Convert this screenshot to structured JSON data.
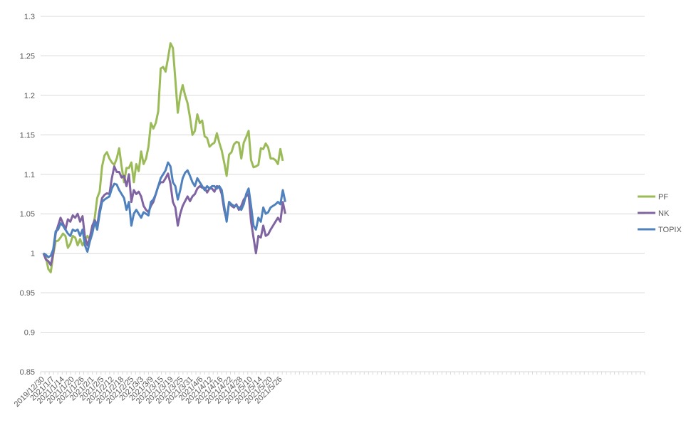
{
  "chart_data": {
    "type": "line",
    "title": "",
    "xlabel": "",
    "ylabel": "",
    "ylim": [
      0.85,
      1.3
    ],
    "yticks": [
      "0.85",
      "0.9",
      "0.95",
      "1",
      "1.05",
      "1.1",
      "1.15",
      "1.2",
      "1.25",
      "1.3"
    ],
    "grid": "horizontal",
    "legend": "right",
    "x_tick_labels": [
      "2019/12/30",
      "2021/1/7",
      "2021/1/14",
      "2021/1/20",
      "2021/1/26",
      "2021/2/1",
      "2021/2/5",
      "2021/2/12",
      "2021/2/18",
      "2021/2/25",
      "2021/3/3",
      "2021/3/9",
      "2021/3/15",
      "2021/3/19",
      "2021/3/25",
      "2021/3/31",
      "2021/4/6",
      "2021/4/12",
      "2021/4/16",
      "2021/4/22",
      "2021/4/28",
      "2021/5/10",
      "2021/5/14",
      "2021/5/20",
      "2021/5/26"
    ],
    "series": [
      {
        "name": "PF",
        "color": "#9bbb59",
        "values": [
          1.0,
          0.995,
          0.98,
          0.976,
          0.998,
          1.015,
          1.016,
          1.02,
          1.025,
          1.022,
          1.007,
          1.012,
          1.022,
          1.02,
          1.01,
          1.018,
          1.01,
          1.016,
          1.022,
          1.018,
          1.03,
          1.045,
          1.07,
          1.078,
          1.11,
          1.124,
          1.128,
          1.12,
          1.115,
          1.112,
          1.12,
          1.133,
          1.11,
          1.09,
          1.108,
          1.108,
          1.115,
          1.09,
          1.113,
          1.104,
          1.129,
          1.113,
          1.12,
          1.135,
          1.165,
          1.158,
          1.165,
          1.18,
          1.234,
          1.236,
          1.23,
          1.247,
          1.266,
          1.26,
          1.22,
          1.178,
          1.2,
          1.213,
          1.2,
          1.19,
          1.172,
          1.15,
          1.155,
          1.176,
          1.165,
          1.168,
          1.148,
          1.146,
          1.135,
          1.138,
          1.14,
          1.152,
          1.14,
          1.13,
          1.115,
          1.098,
          1.125,
          1.128,
          1.138,
          1.141,
          1.14,
          1.12,
          1.14,
          1.147,
          1.155,
          1.118,
          1.109,
          1.11,
          1.112,
          1.133,
          1.132,
          1.139,
          1.134,
          1.12,
          1.12,
          1.118,
          1.113,
          1.132,
          1.117
        ]
      },
      {
        "name": "NK",
        "color": "#8064a2",
        "values": [
          1.0,
          0.992,
          0.99,
          0.985,
          1.0,
          1.025,
          1.035,
          1.045,
          1.038,
          1.03,
          1.043,
          1.04,
          1.048,
          1.045,
          1.05,
          1.04,
          1.047,
          1.02,
          1.01,
          1.02,
          1.035,
          1.042,
          1.035,
          1.055,
          1.07,
          1.074,
          1.076,
          1.075,
          1.095,
          1.11,
          1.103,
          1.103,
          1.096,
          1.098,
          1.085,
          1.1,
          1.065,
          1.08,
          1.075,
          1.078,
          1.072,
          1.06,
          1.055,
          1.052,
          1.06,
          1.065,
          1.075,
          1.085,
          1.09,
          1.09,
          1.095,
          1.101,
          1.088,
          1.065,
          1.058,
          1.035,
          1.05,
          1.06,
          1.066,
          1.072,
          1.066,
          1.072,
          1.075,
          1.082,
          1.085,
          1.083,
          1.083,
          1.077,
          1.082,
          1.082,
          1.078,
          1.085,
          1.084,
          1.075,
          1.055,
          1.042,
          1.065,
          1.06,
          1.058,
          1.062,
          1.055,
          1.06,
          1.068,
          1.072,
          1.075,
          1.04,
          1.02,
          1.0,
          1.022,
          1.02,
          1.035,
          1.022,
          1.024,
          1.03,
          1.035,
          1.04,
          1.045,
          1.04,
          1.065,
          1.05
        ]
      },
      {
        "name": "TOPIX",
        "color": "#4f81bd",
        "values": [
          1.0,
          0.998,
          0.995,
          0.997,
          1.005,
          1.028,
          1.03,
          1.038,
          1.035,
          1.03,
          1.025,
          1.022,
          1.03,
          1.028,
          1.03,
          1.022,
          1.03,
          1.01,
          1.002,
          1.015,
          1.025,
          1.04,
          1.03,
          1.05,
          1.065,
          1.068,
          1.07,
          1.072,
          1.082,
          1.088,
          1.087,
          1.08,
          1.075,
          1.07,
          1.055,
          1.065,
          1.035,
          1.05,
          1.055,
          1.05,
          1.045,
          1.052,
          1.05,
          1.048,
          1.065,
          1.068,
          1.075,
          1.085,
          1.095,
          1.1,
          1.105,
          1.115,
          1.11,
          1.09,
          1.085,
          1.068,
          1.08,
          1.095,
          1.102,
          1.105,
          1.098,
          1.09,
          1.085,
          1.095,
          1.09,
          1.085,
          1.08,
          1.085,
          1.082,
          1.085,
          1.085,
          1.082,
          1.085,
          1.08,
          1.06,
          1.04,
          1.065,
          1.062,
          1.06,
          1.06,
          1.058,
          1.055,
          1.062,
          1.075,
          1.082,
          1.06,
          1.035,
          1.03,
          1.045,
          1.04,
          1.058,
          1.05,
          1.052,
          1.058,
          1.06,
          1.062,
          1.065,
          1.062,
          1.08,
          1.065
        ]
      }
    ]
  }
}
